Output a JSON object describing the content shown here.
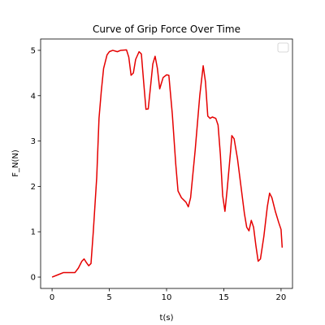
{
  "chart_data": {
    "type": "line",
    "title": "Curve of Grip Force Over Time",
    "x_label": "t(s)",
    "y_label": "F_N(N)",
    "x": [
      0,
      0.5,
      1,
      2,
      2.3,
      2.6,
      2.8,
      3.0,
      3.2,
      3.4,
      3.6,
      3.9,
      4.1,
      4.3,
      4.5,
      4.8,
      5.0,
      5.3,
      5.7,
      6.0,
      6.5,
      6.7,
      6.9,
      7.1,
      7.3,
      7.6,
      7.8,
      8.0,
      8.2,
      8.4,
      8.6,
      8.8,
      9.0,
      9.2,
      9.4,
      9.7,
      10.0,
      10.2,
      10.5,
      10.8,
      11.0,
      11.3,
      11.7,
      11.9,
      12.1,
      12.5,
      12.9,
      13.2,
      13.4,
      13.6,
      13.8,
      14.0,
      14.3,
      14.5,
      14.7,
      14.9,
      15.1,
      15.3,
      15.6,
      15.7,
      15.9,
      16.2,
      16.5,
      16.8,
      17.0,
      17.2,
      17.4,
      17.6,
      17.8,
      18.0,
      18.2,
      18.5,
      18.8,
      19.0,
      19.2,
      19.5,
      19.8,
      20.0,
      20.1
    ],
    "values": [
      0,
      0.05,
      0.1,
      0.1,
      0.2,
      0.35,
      0.4,
      0.32,
      0.25,
      0.3,
      1.0,
      2.2,
      3.5,
      4.1,
      4.6,
      4.9,
      4.97,
      5.0,
      4.97,
      5.0,
      5.01,
      4.85,
      4.45,
      4.5,
      4.8,
      4.97,
      4.92,
      4.3,
      3.7,
      3.71,
      4.2,
      4.7,
      4.87,
      4.6,
      4.15,
      4.4,
      4.46,
      4.45,
      3.6,
      2.5,
      1.9,
      1.75,
      1.65,
      1.55,
      1.75,
      2.8,
      4.0,
      4.66,
      4.3,
      3.55,
      3.5,
      3.53,
      3.5,
      3.35,
      2.7,
      1.8,
      1.45,
      1.95,
      2.8,
      3.12,
      3.05,
      2.6,
      2.0,
      1.4,
      1.1,
      1.02,
      1.25,
      1.1,
      0.7,
      0.35,
      0.4,
      0.9,
      1.55,
      1.85,
      1.75,
      1.45,
      1.2,
      1.05,
      0.65
    ],
    "color": "#e50000",
    "xlim": [
      -1,
      21
    ],
    "xticks": [
      0,
      5,
      10,
      15,
      20
    ],
    "ylim": [
      -0.25,
      5.25
    ],
    "yticks": [
      0,
      1,
      2,
      3,
      4,
      5
    ],
    "legend": "upper right"
  }
}
